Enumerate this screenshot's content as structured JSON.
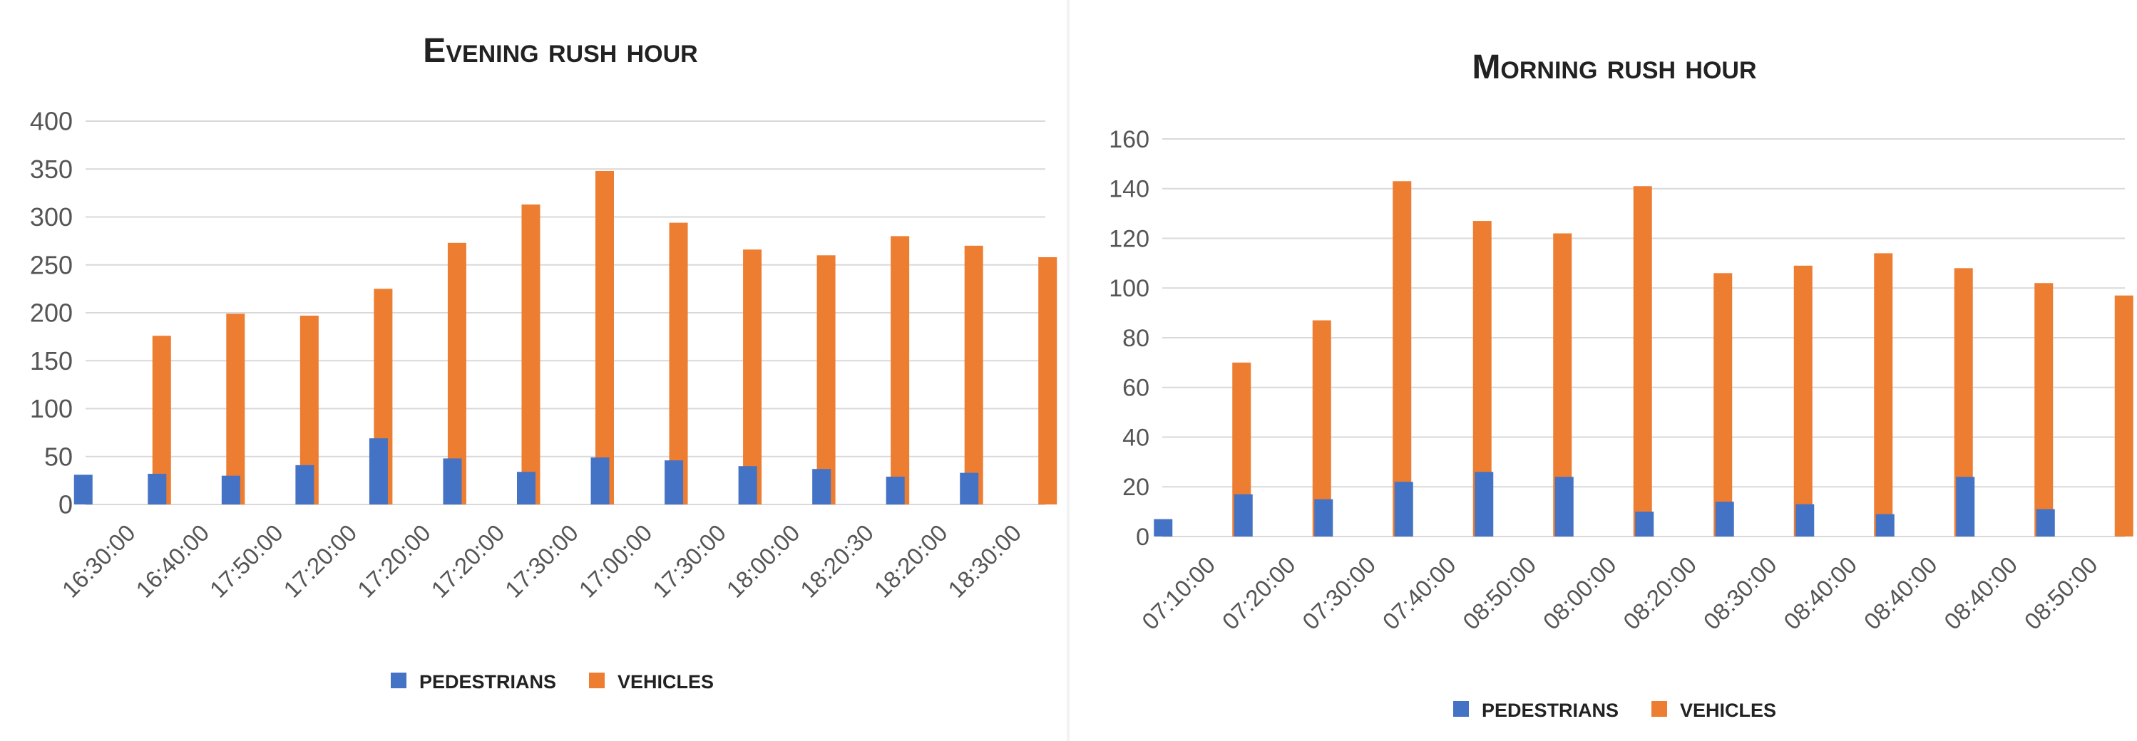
{
  "chart_data": [
    {
      "type": "bar",
      "title": "Evening rush hour",
      "categories": [
        "16:30:00",
        "16:40:00",
        "17:50:00",
        "17:20:00",
        "17:20:00",
        "17:20:00",
        "17:30:00",
        "17:00:00",
        "17:30:00",
        "18:00:00",
        "18:20:30",
        "18:20:00",
        "18:30:00"
      ],
      "series": [
        {
          "name": "PEDESTRIANS",
          "color": "#4472c4",
          "values": [
            31,
            32,
            30,
            41,
            69,
            48,
            34,
            49,
            46,
            40,
            37,
            29,
            33
          ]
        },
        {
          "name": "VEHICLES",
          "color": "#ed7d31",
          "values": [
            176,
            199,
            197,
            225,
            273,
            313,
            348,
            294,
            266,
            260,
            280,
            270,
            258
          ]
        }
      ],
      "ylim": [
        0,
        400
      ],
      "yticks": [
        0,
        50,
        100,
        150,
        200,
        250,
        300,
        350,
        400
      ],
      "grid": true,
      "legend": "bottom"
    },
    {
      "type": "bar",
      "title": "Morning rush hour",
      "categories": [
        "07:10:00",
        "07:20:00",
        "07:30:00",
        "07:40:00",
        "08:50:00",
        "08:00:00",
        "08:20:00",
        "08:30:00",
        "08:40:00",
        "08:40:00",
        "08:40:00",
        "08:50:00"
      ],
      "series": [
        {
          "name": "PEDESTRIANS",
          "color": "#4472c4",
          "values": [
            7,
            17,
            15,
            22,
            26,
            24,
            10,
            14,
            13,
            9,
            24,
            11
          ]
        },
        {
          "name": "VEHICLES",
          "color": "#ed7d31",
          "values": [
            70,
            87,
            143,
            127,
            122,
            141,
            106,
            109,
            114,
            108,
            102,
            97
          ]
        }
      ],
      "ylim": [
        0,
        160
      ],
      "yticks": [
        0,
        20,
        40,
        60,
        80,
        100,
        120,
        140,
        160
      ],
      "grid": true,
      "legend": "bottom"
    }
  ]
}
